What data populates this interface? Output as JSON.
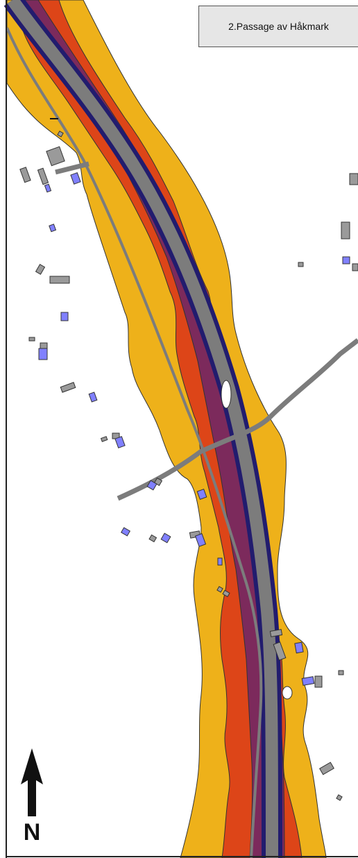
{
  "map": {
    "title": "2.Passage av Håkmark",
    "north_arrow": {
      "label": "N"
    },
    "colors": {
      "outer_zone": "#eeb11a",
      "middle_zone": "#dd4518",
      "inner_zone": "#7c2a5c",
      "core_line": "#221c6e",
      "road": "#7c7c7c",
      "building_grey": "#9a9a9a",
      "building_blue": "#8080ff",
      "outline": "#333333",
      "title_bg": "#e6e6e6"
    }
  }
}
